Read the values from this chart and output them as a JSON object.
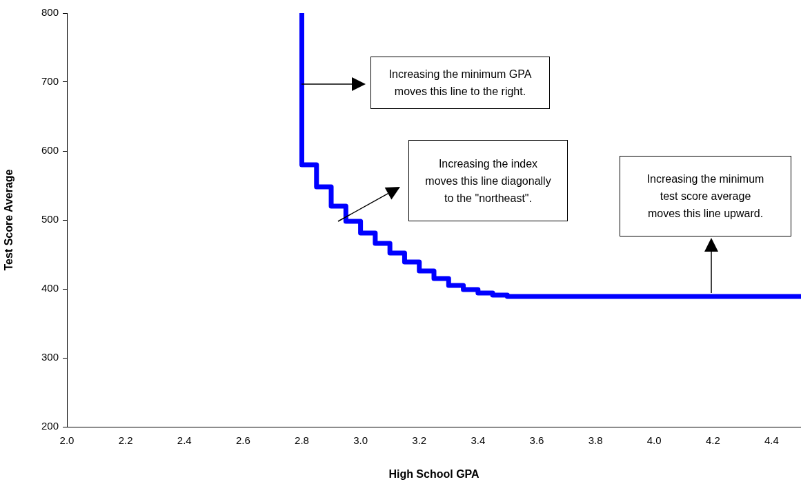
{
  "chart_data": {
    "type": "step",
    "xlabel": "High School GPA",
    "ylabel": "Test Score Average",
    "x": [
      2.8,
      2.8,
      2.85,
      2.9,
      2.95,
      3.0,
      3.05,
      3.1,
      3.15,
      3.2,
      3.25,
      3.3,
      3.35,
      3.4,
      3.45,
      3.5,
      4.5
    ],
    "series": [
      {
        "color": "#0000ff",
        "values": [
          800,
          580,
          548,
          520,
          498,
          481,
          466,
          452,
          439,
          426,
          415,
          405,
          399,
          394,
          391,
          389,
          389
        ]
      }
    ],
    "xlim": [
      2,
      4.5
    ],
    "xticks": [
      {
        "value": 2,
        "label": "2.0"
      },
      2.2,
      2.4,
      2.6,
      2.8,
      {
        "value": 3,
        "label": "3.0"
      },
      3.2,
      3.4,
      3.6,
      3.8,
      {
        "value": 4,
        "label": "4.0"
      },
      4.2,
      4.4
    ],
    "ylim": [
      200,
      800
    ],
    "yticks": [
      200,
      300,
      400,
      500,
      600,
      700,
      800
    ],
    "grid": false,
    "legend": false,
    "marker": "none",
    "line_style": "solid",
    "annotations": [
      "Increasing the minimum GPA\nmoves this line to the right.",
      "Increasing the index\nmoves this line diagonally\nto the \"northeast\".",
      "Increasing the minimum\ntest score average\nmoves this line upward."
    ]
  }
}
